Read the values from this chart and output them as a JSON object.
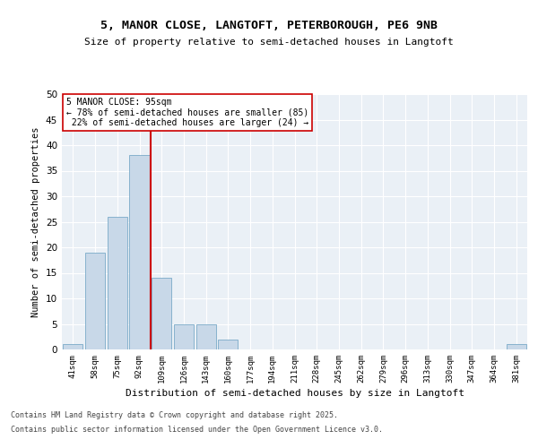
{
  "title1": "5, MANOR CLOSE, LANGTOFT, PETERBOROUGH, PE6 9NB",
  "title2": "Size of property relative to semi-detached houses in Langtoft",
  "xlabel": "Distribution of semi-detached houses by size in Langtoft",
  "ylabel": "Number of semi-detached properties",
  "categories": [
    "41sqm",
    "58sqm",
    "75sqm",
    "92sqm",
    "109sqm",
    "126sqm",
    "143sqm",
    "160sqm",
    "177sqm",
    "194sqm",
    "211sqm",
    "228sqm",
    "245sqm",
    "262sqm",
    "279sqm",
    "296sqm",
    "313sqm",
    "330sqm",
    "347sqm",
    "364sqm",
    "381sqm"
  ],
  "values": [
    1,
    19,
    26,
    38,
    14,
    5,
    5,
    2,
    0,
    0,
    0,
    0,
    0,
    0,
    0,
    0,
    0,
    0,
    0,
    0,
    1
  ],
  "bar_color": "#c8d8e8",
  "bar_edgecolor": "#7aaac8",
  "pct_smaller": 78,
  "n_smaller": 85,
  "pct_larger": 22,
  "n_larger": 24,
  "vline_color": "#cc0000",
  "ylim": [
    0,
    50
  ],
  "yticks": [
    0,
    5,
    10,
    15,
    20,
    25,
    30,
    35,
    40,
    45,
    50
  ],
  "background_color": "#eaf0f6",
  "footer1": "Contains HM Land Registry data © Crown copyright and database right 2025.",
  "footer2": "Contains public sector information licensed under the Open Government Licence v3.0."
}
